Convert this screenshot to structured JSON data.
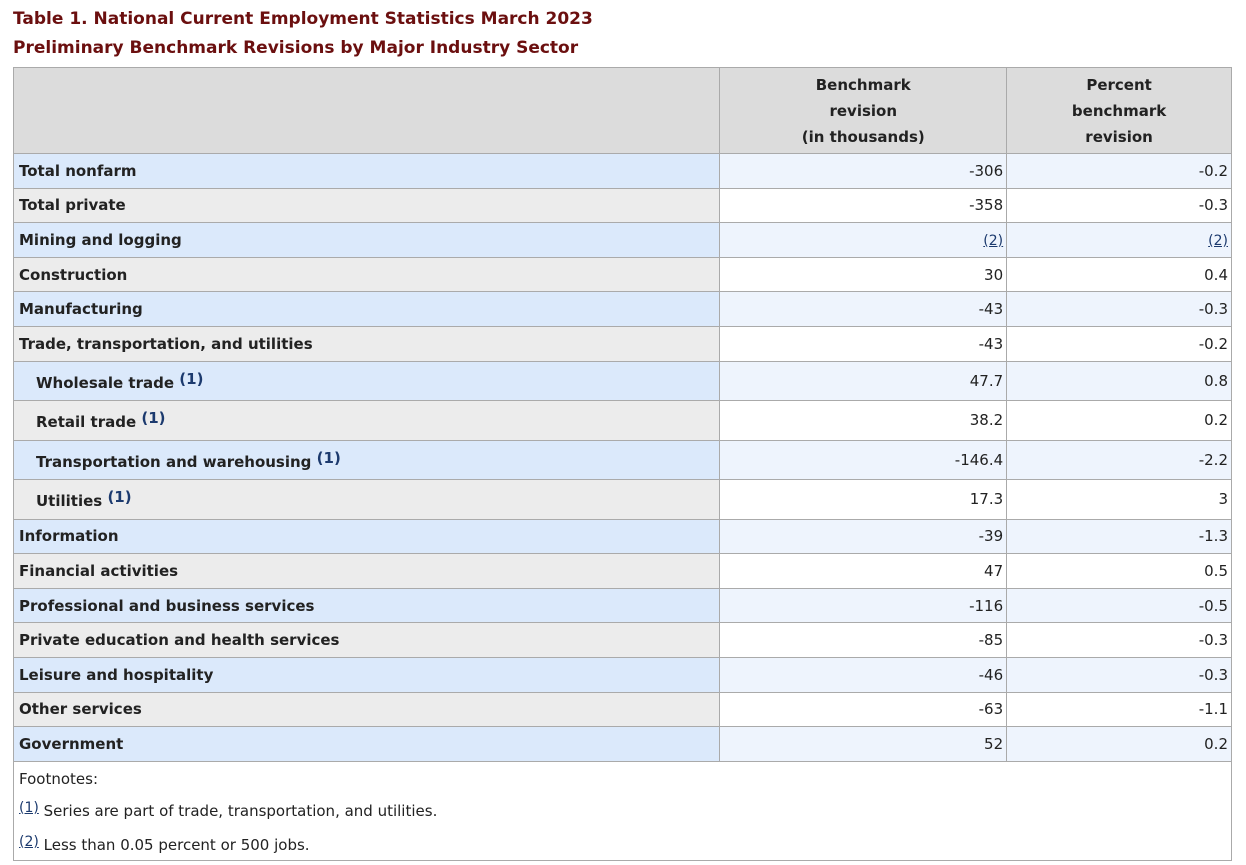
{
  "title": "Table 1. National Current Employment Statistics March 2023",
  "subtitle": "Preliminary Benchmark Revisions by Major Industry Sector",
  "table": {
    "headers": [
      [
        "Benchmark",
        "revision",
        "(in thousands)"
      ],
      [
        "Percent",
        "benchmark",
        "revision"
      ]
    ],
    "rows": [
      {
        "label": "Total nonfarm",
        "values": [
          -306,
          -0.2
        ]
      },
      {
        "label": "Total private",
        "values": [
          -358,
          -0.3
        ]
      },
      {
        "label": "Mining and logging",
        "values": [
          "(2)",
          "(2)"
        ]
      },
      {
        "label": "Construction",
        "values": [
          30,
          0.4
        ]
      },
      {
        "label": "Manufacturing",
        "values": [
          -43,
          -0.3
        ]
      },
      {
        "label": "Trade, transportation, and utilities",
        "values": [
          -43,
          -0.2
        ]
      },
      {
        "label": "Wholesale trade",
        "note": "(1)",
        "values": [
          47.7,
          0.8
        ]
      },
      {
        "label": "Retail trade",
        "note": "(1)",
        "values": [
          38.2,
          0.2
        ]
      },
      {
        "label": "Transportation and warehousing",
        "note": "(1)",
        "values": [
          -146.4,
          -2.2
        ]
      },
      {
        "label": "Utilities",
        "note": "(1)",
        "values": [
          17.3,
          3
        ]
      },
      {
        "label": "Information",
        "values": [
          -39,
          -1.3
        ]
      },
      {
        "label": "Financial activities",
        "values": [
          47,
          0.5
        ]
      },
      {
        "label": "Professional and business services",
        "values": [
          -116,
          -0.5
        ]
      },
      {
        "label": "Private education and health services",
        "values": [
          -85,
          -0.3
        ]
      },
      {
        "label": "Leisure and hospitality",
        "values": [
          -46,
          -0.3
        ]
      },
      {
        "label": "Other services",
        "values": [
          -63,
          -1.1
        ]
      },
      {
        "label": "Government",
        "values": [
          52,
          0.2
        ]
      }
    ]
  },
  "footnotes": {
    "label": "Footnotes:",
    "items": [
      {
        "ref": "(1)",
        "text": "Series are part of trade, transportation, and utilities."
      },
      {
        "ref": "(2)",
        "text": "Less than 0.05 percent or 500 jobs."
      }
    ]
  }
}
